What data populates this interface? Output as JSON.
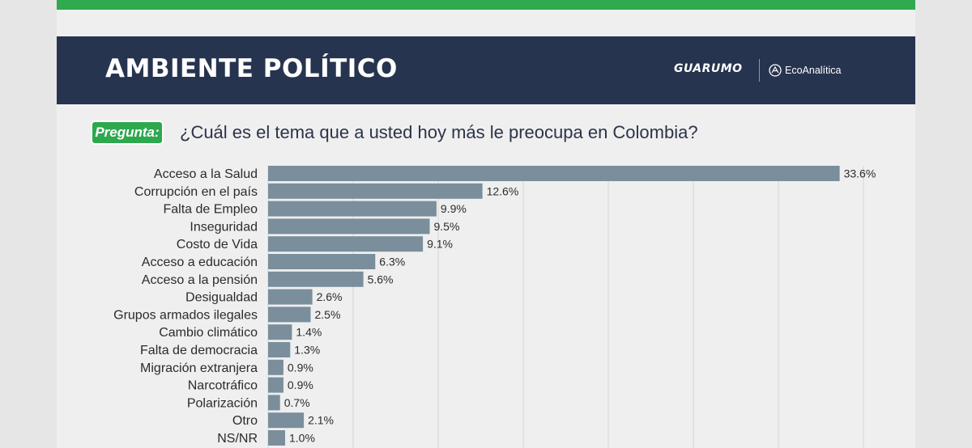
{
  "header": {
    "title": "AMBIENTE POLÍTICO",
    "brand_1": "GUARUMO",
    "brand_2": "EcoAnalítica"
  },
  "pregunta_label": "Pregunta:",
  "question": "¿Cuál es el tema que a usted hoy más le preocupa en Colombia?",
  "colors": {
    "header_bg": "#263450",
    "accent_green": "#2faa4f",
    "bar": "#7a8e9c"
  },
  "chart_data": {
    "type": "bar",
    "orientation": "horizontal",
    "categories": [
      "Acceso a la Salud",
      "Corrupción en el país",
      "Falta de Empleo",
      "Inseguridad",
      "Costo de Vida",
      "Acceso a educación",
      "Acceso a la pensión",
      "Desigualdad",
      "Grupos armados ilegales",
      "Cambio climático",
      "Falta de democracia",
      "Migración extranjera",
      "Narcotráfico",
      "Polarización",
      "Otro",
      "NS/NR"
    ],
    "values": [
      33.6,
      12.6,
      9.9,
      9.5,
      9.1,
      6.3,
      5.6,
      2.6,
      2.5,
      1.4,
      1.3,
      0.9,
      0.9,
      0.7,
      2.1,
      1.0
    ],
    "value_labels": [
      "33.6%",
      "12.6%",
      "9.9%",
      "9.5%",
      "9.1%",
      "6.3%",
      "5.6%",
      "2.6%",
      "2.5%",
      "1.4%",
      "1.3%",
      "0.9%",
      "0.9%",
      "0.7%",
      "2.1%",
      "1.0%"
    ],
    "xlim": [
      0,
      35
    ],
    "grid": true,
    "legend": false
  }
}
